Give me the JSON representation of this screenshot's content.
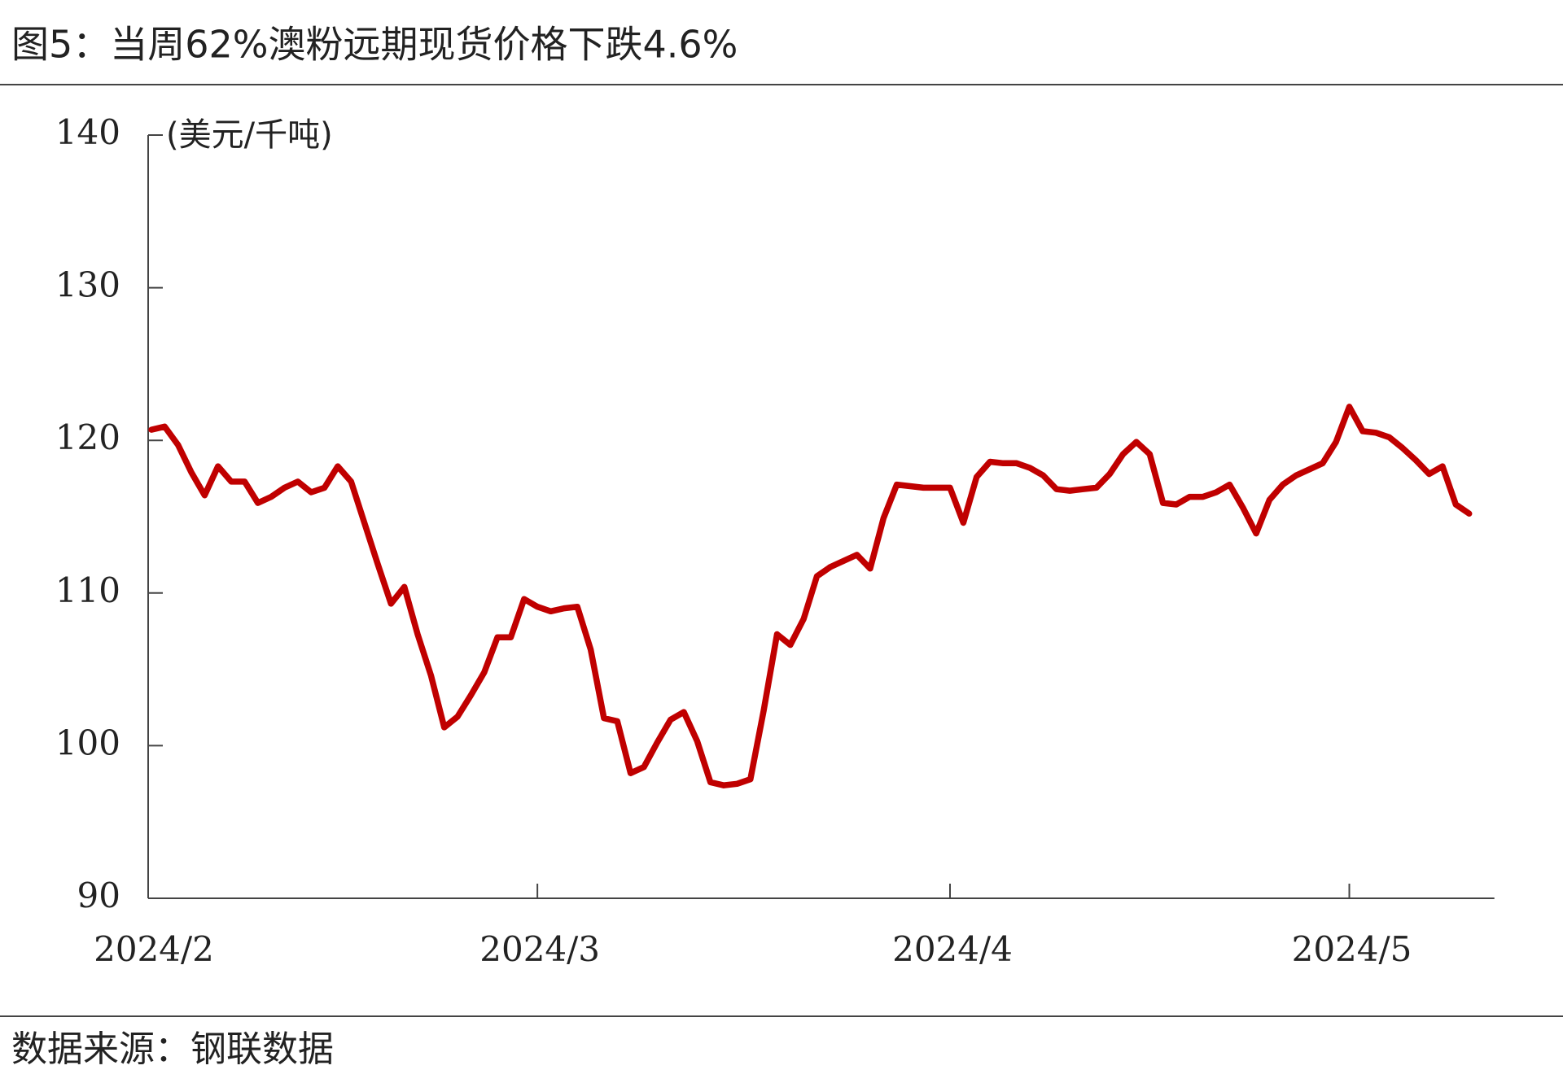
{
  "chart_data": {
    "type": "line",
    "title": "图5：当周62%澳粉远期现货价格下跌4.6%",
    "y_label": "(美元/千吨)",
    "source": "数据来源：钢联数据",
    "categories": [
      "2024/2",
      null,
      null,
      null,
      null,
      null,
      null,
      null,
      null,
      null,
      null,
      null,
      null,
      null,
      null,
      null,
      null,
      null,
      null,
      null,
      null,
      null,
      null,
      null,
      null,
      null,
      null,
      null,
      null,
      "2024/3",
      null,
      null,
      null,
      null,
      null,
      null,
      null,
      null,
      null,
      null,
      null,
      null,
      null,
      null,
      null,
      null,
      null,
      null,
      null,
      null,
      null,
      null,
      null,
      null,
      null,
      null,
      null,
      null,
      null,
      null,
      "2024/4",
      null,
      null,
      null,
      null,
      null,
      null,
      null,
      null,
      null,
      null,
      null,
      null,
      null,
      null,
      null,
      null,
      null,
      null,
      null,
      null,
      null,
      null,
      null,
      null,
      null,
      null,
      null,
      null,
      null,
      "2024/5",
      null,
      null,
      null,
      null,
      null,
      null,
      null,
      null,
      null
    ],
    "series": [
      {
        "name": "62%澳粉远期现货价格",
        "color": "#c00000",
        "values": [
          120.7,
          120.9,
          119.7,
          117.9,
          116.4,
          118.3,
          117.3,
          117.3,
          115.9,
          116.3,
          116.9,
          117.3,
          116.6,
          116.9,
          118.3,
          117.3,
          114.6,
          111.9,
          109.3,
          110.4,
          107.3,
          104.6,
          101.2,
          101.9,
          103.3,
          104.8,
          107.1,
          107.1,
          109.6,
          109.1,
          108.8,
          109.0,
          109.1,
          106.3,
          101.8,
          101.6,
          98.2,
          98.6,
          100.2,
          101.7,
          102.2,
          100.3,
          97.6,
          97.4,
          97.5,
          97.8,
          102.3,
          107.3,
          106.6,
          108.3,
          111.1,
          111.7,
          112.1,
          112.5,
          111.6,
          114.9,
          117.1,
          117.0,
          116.9,
          116.9,
          116.9,
          114.6,
          117.6,
          118.6,
          118.5,
          118.5,
          118.2,
          117.7,
          116.8,
          116.7,
          116.8,
          116.9,
          117.8,
          119.1,
          119.9,
          119.1,
          115.9,
          115.8,
          116.3,
          116.3,
          116.6,
          117.1,
          115.6,
          113.9,
          116.1,
          117.1,
          117.7,
          118.1,
          118.5,
          119.9,
          122.2,
          120.6,
          120.5,
          120.2,
          119.5,
          118.7,
          117.8,
          118.3,
          115.8,
          115.2
        ]
      }
    ],
    "ylim": [
      90,
      140
    ],
    "yticks": [
      90,
      100,
      110,
      120,
      130,
      140
    ],
    "grid": false
  }
}
